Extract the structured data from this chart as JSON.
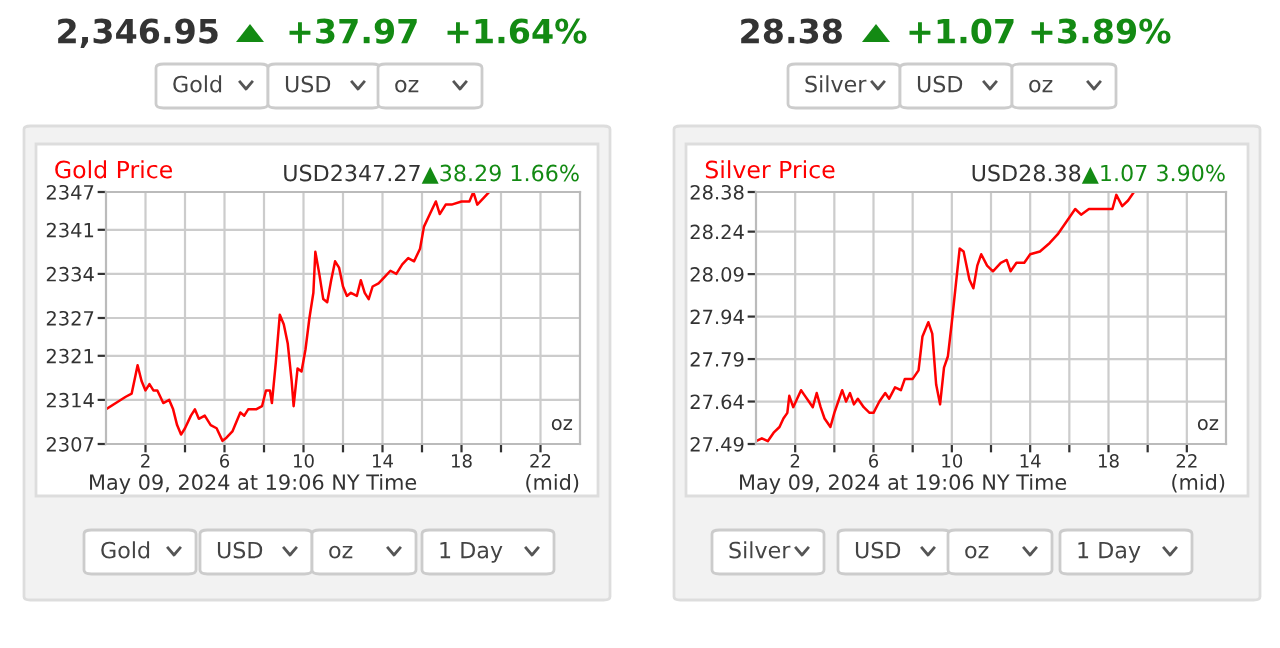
{
  "chart_data": [
    {
      "type": "line",
      "title": "Gold Price",
      "subtitle": "USD2347.27",
      "annotations": [
        "2,346.95",
        "+37.97",
        "+1.64%",
        "Gold",
        "USD",
        "oz",
        "▲38.29 1.66%",
        "oz",
        "May 09, 2024 at 19:06 NY Time",
        "(mid)",
        "Gold",
        "USD",
        "oz",
        "1 Day"
      ],
      "x": [
        0,
        0.5,
        1.0,
        1.3,
        1.5,
        1.6,
        1.8,
        2.0,
        2.2,
        2.4,
        2.6,
        2.9,
        3.2,
        3.4,
        3.6,
        3.8,
        4.0,
        4.3,
        4.5,
        4.7,
        5.0,
        5.3,
        5.6,
        5.9,
        6.1,
        6.4,
        6.6,
        6.8,
        7.0,
        7.2,
        7.6,
        7.9,
        8.1,
        8.3,
        8.4,
        8.6,
        8.8,
        9.0,
        9.2,
        9.4,
        9.5,
        9.7,
        9.9,
        10.1,
        10.3,
        10.5,
        10.6,
        10.8,
        11.0,
        11.2,
        11.4,
        11.6,
        11.8,
        12.0,
        12.2,
        12.4,
        12.7,
        12.9,
        13.1,
        13.3,
        13.5,
        13.8,
        14.1,
        14.4,
        14.7,
        15.0,
        15.3,
        15.6,
        15.9,
        16.1,
        16.4,
        16.7,
        16.9,
        17.2,
        17.5,
        18.0,
        18.2,
        18.4,
        18.6,
        18.8,
        19.1,
        19.4
      ],
      "series": [
        {
          "color": "#ff0000",
          "values": [
            2312.5,
            2313.5,
            2314.5,
            2315,
            2318,
            2319.5,
            2317,
            2315.5,
            2316.5,
            2315.5,
            2315.5,
            2313.5,
            2314,
            2312.5,
            2310,
            2308.5,
            2309.5,
            2311.5,
            2312.5,
            2311,
            2311.5,
            2310,
            2309.5,
            2307.5,
            2308,
            2309,
            2310.5,
            2312,
            2311.5,
            2312.5,
            2312.5,
            2313,
            2315.5,
            2315.5,
            2313.5,
            2320,
            2327.5,
            2326,
            2323,
            2317,
            2313,
            2319,
            2318.5,
            2322,
            2327,
            2331,
            2337.5,
            2334,
            2330,
            2329.5,
            2333,
            2336,
            2335,
            2332,
            2330.5,
            2331,
            2330.5,
            2333,
            2331,
            2330,
            2332,
            2332.5,
            2333.5,
            2334.5,
            2334,
            2335.5,
            2336.5,
            2336,
            2338,
            2341.5,
            2343.5,
            2345.5,
            2343.5,
            2345,
            2345,
            2345.5,
            2345.5,
            2345.5,
            2347,
            2345,
            2346,
            2347
          ]
        }
      ],
      "xlim": [
        0,
        24
      ],
      "xticks": [
        2,
        {
          "value": 4,
          "label": null
        },
        6,
        {
          "value": 8,
          "label": null
        },
        10,
        {
          "value": 12,
          "label": null
        },
        14,
        {
          "value": 16,
          "label": null
        },
        18,
        {
          "value": 20,
          "label": null
        },
        22
      ],
      "ylim": [
        2307,
        2347
      ],
      "yticks": [
        2307,
        2314,
        2321,
        2327,
        2334,
        2341,
        2347
      ],
      "grid": true
    },
    {
      "type": "line",
      "title": "Silver Price",
      "subtitle": "USD28.38",
      "annotations": [
        "28.38",
        "+1.07",
        "+3.89%",
        "Silver",
        "USD",
        "oz",
        "▲1.07 3.90%",
        "oz",
        "May 09, 2024 at 19:06 NY Time",
        "(mid)",
        "Silver",
        "USD",
        "oz",
        "1 Day"
      ],
      "x": [
        0,
        0.3,
        0.6,
        0.9,
        1.2,
        1.4,
        1.6,
        1.7,
        1.9,
        2.1,
        2.3,
        2.5,
        2.7,
        2.9,
        3.1,
        3.3,
        3.5,
        3.8,
        4.0,
        4.2,
        4.4,
        4.6,
        4.8,
        5.0,
        5.2,
        5.5,
        5.8,
        6.0,
        6.3,
        6.6,
        6.8,
        7.1,
        7.4,
        7.6,
        8.0,
        8.3,
        8.5,
        8.8,
        9.0,
        9.2,
        9.4,
        9.6,
        9.8,
        10.0,
        10.2,
        10.4,
        10.6,
        10.9,
        11.1,
        11.3,
        11.5,
        11.8,
        12.1,
        12.5,
        12.8,
        13.0,
        13.3,
        13.7,
        14.0,
        14.5,
        15.0,
        15.4,
        15.7,
        16.0,
        16.3,
        16.6,
        17.0,
        17.5,
        18.2,
        18.4,
        18.7,
        19.0,
        19.3
      ],
      "series": [
        {
          "color": "#ff0000",
          "values": [
            27.5,
            27.51,
            27.5,
            27.53,
            27.55,
            27.58,
            27.6,
            27.66,
            27.62,
            27.65,
            27.68,
            27.66,
            27.64,
            27.62,
            27.67,
            27.62,
            27.58,
            27.55,
            27.6,
            27.64,
            27.68,
            27.64,
            27.67,
            27.63,
            27.65,
            27.62,
            27.6,
            27.6,
            27.64,
            27.67,
            27.65,
            27.69,
            27.68,
            27.72,
            27.72,
            27.75,
            27.87,
            27.92,
            27.88,
            27.7,
            27.63,
            27.76,
            27.8,
            27.92,
            28.05,
            28.18,
            28.17,
            28.07,
            28.04,
            28.12,
            28.16,
            28.12,
            28.1,
            28.13,
            28.14,
            28.1,
            28.13,
            28.13,
            28.16,
            28.17,
            28.2,
            28.23,
            28.26,
            28.29,
            28.32,
            28.3,
            28.32,
            28.32,
            28.32,
            28.37,
            28.33,
            28.35,
            28.38
          ]
        }
      ],
      "xlim": [
        0,
        24
      ],
      "xticks": [
        2,
        {
          "value": 4,
          "label": null
        },
        6,
        {
          "value": 8,
          "label": null
        },
        10,
        {
          "value": 12,
          "label": null
        },
        14,
        {
          "value": 16,
          "label": null
        },
        18,
        {
          "value": 20,
          "label": null
        },
        22
      ],
      "ylim": [
        27.49,
        28.38
      ],
      "yticks": [
        27.49,
        27.64,
        27.79,
        27.94,
        28.09,
        28.24,
        28.38
      ],
      "grid": true
    }
  ]
}
